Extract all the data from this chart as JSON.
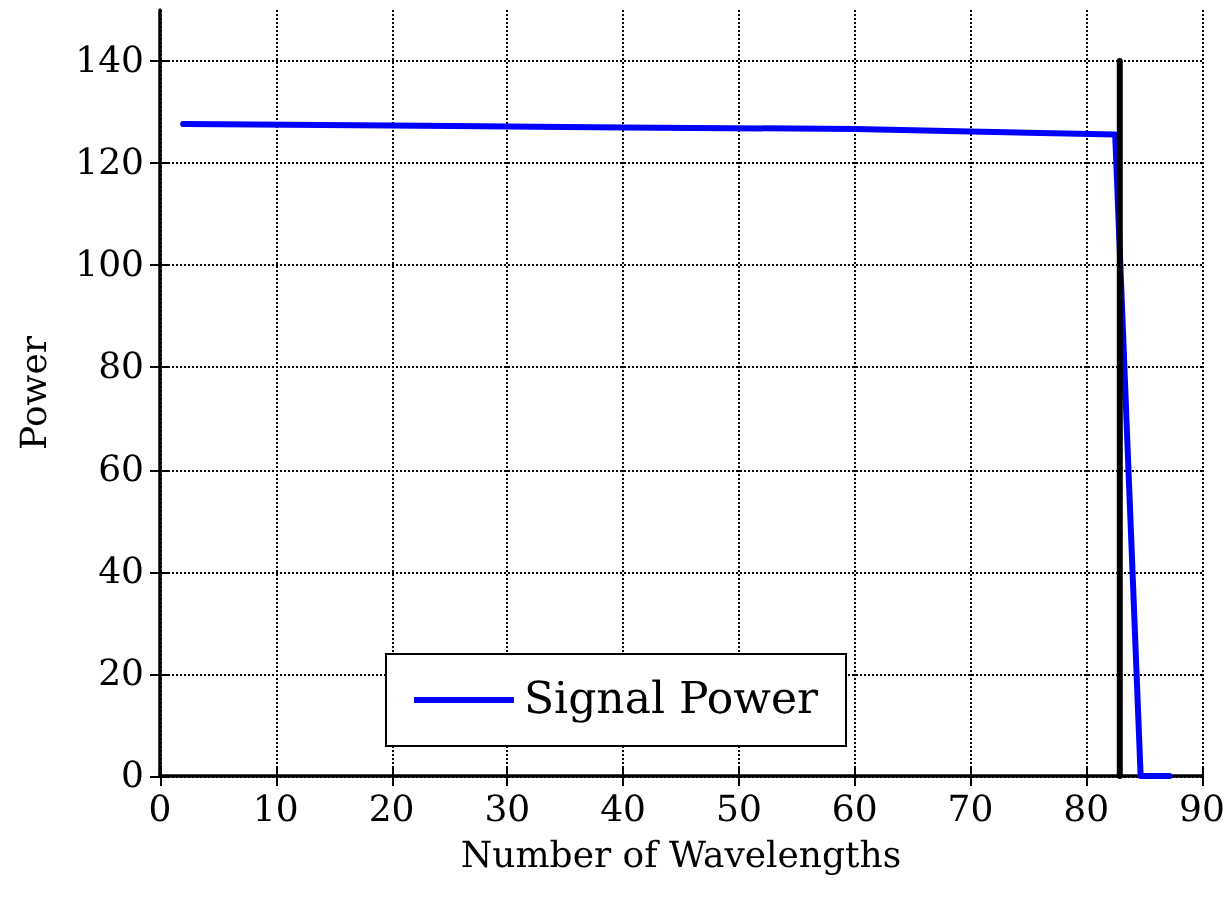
{
  "chart_data": {
    "type": "line",
    "xlabel": "Number of Wavelengths",
    "ylabel": "Power",
    "series": [
      {
        "name": "Signal Power",
        "color": "#0000ff",
        "x": [
          2,
          20,
          40,
          60,
          70,
          82.5,
          84.7,
          87.2
        ],
        "values": [
          127.7,
          127.4,
          127,
          126.7,
          126.2,
          125.6,
          0,
          0
        ]
      },
      {
        "color": "#000000",
        "x": [
          82.9,
          82.9
        ],
        "values": [
          0,
          140
        ]
      }
    ],
    "xlim": [
      0,
      90
    ],
    "xticks": [
      0,
      10,
      20,
      30,
      40,
      50,
      60,
      70,
      80,
      90
    ],
    "ylim": [
      0,
      150
    ],
    "yticks": [
      0,
      20,
      40,
      60,
      80,
      100,
      120,
      140
    ],
    "grid": true,
    "legend": "bottom",
    "marker": "none",
    "line_style": "solid"
  }
}
